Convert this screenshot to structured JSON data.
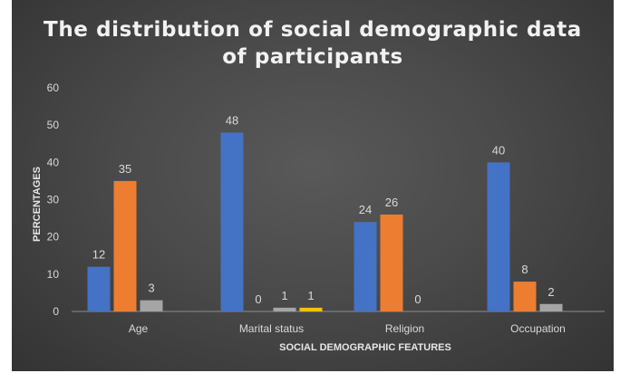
{
  "chart_data": {
    "type": "bar",
    "title": "The distribution of social demographic data\nof participants",
    "xlabel": "SOCIAL DEMOGRAPHIC FEATURES",
    "ylabel": "PERCENTAGES",
    "ylim": [
      0,
      60
    ],
    "yticks": [
      0,
      10,
      20,
      30,
      40,
      50,
      60
    ],
    "grid": false,
    "legend": "none",
    "categories": [
      "Age",
      "Marital status",
      "Religion",
      "Occupation"
    ],
    "series": [
      {
        "color": "#4472c4",
        "values": [
          12,
          48,
          24,
          40
        ]
      },
      {
        "color": "#ed7d31",
        "values": [
          35,
          0,
          26,
          8
        ]
      },
      {
        "color": "#a5a5a5",
        "values": [
          3,
          1,
          0,
          2
        ]
      },
      {
        "color": "#ffc000",
        "values": [
          null,
          1,
          null,
          null
        ]
      }
    ]
  }
}
